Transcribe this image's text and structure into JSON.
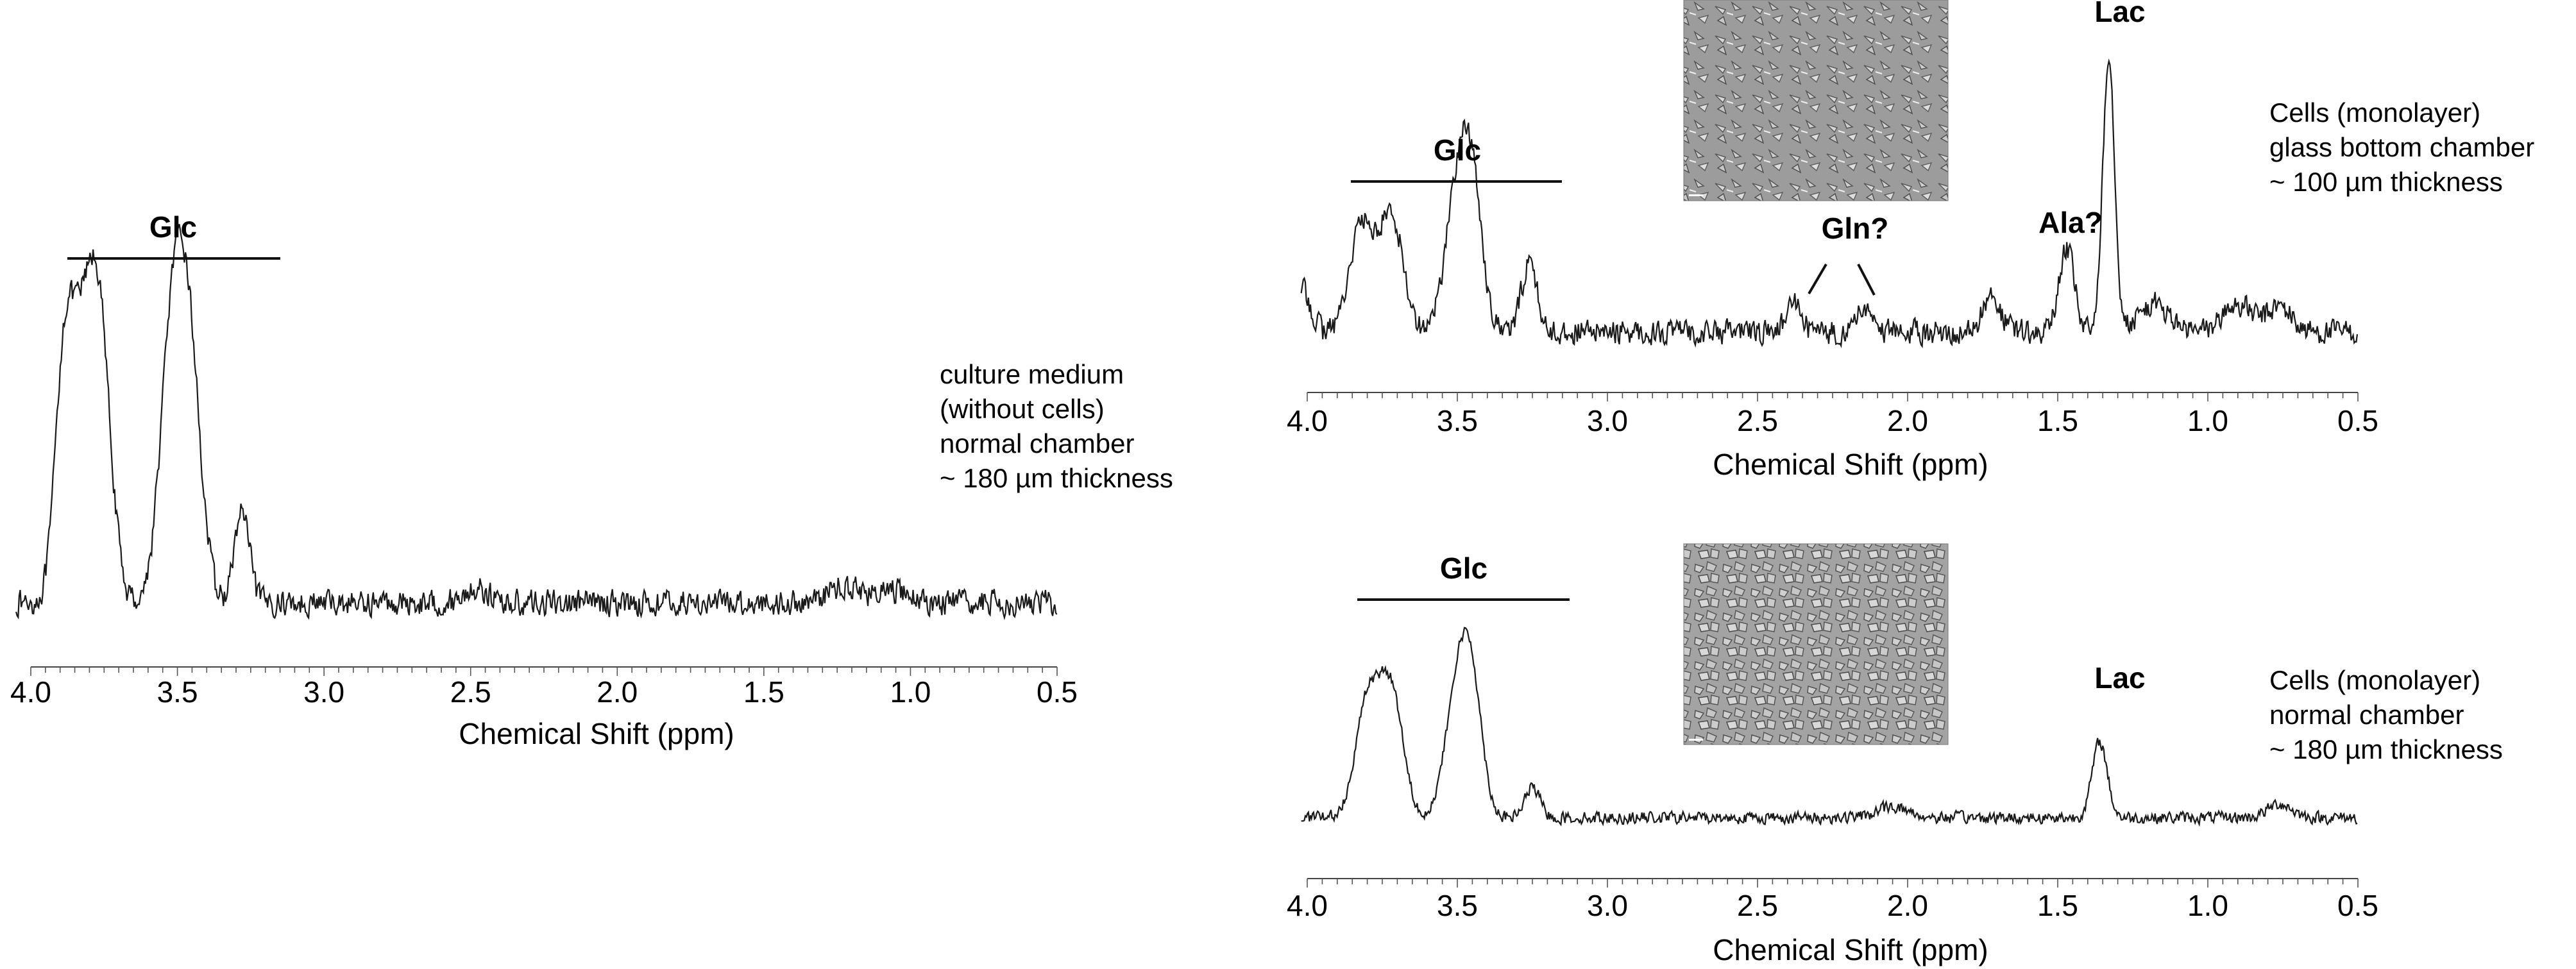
{
  "chart_data": [
    {
      "type": "line",
      "id": "panel-left",
      "xlabel": "Chemical Shift (ppm)",
      "xlim": [
        4.0,
        0.5
      ],
      "x_reversed": true,
      "tick_labels": [
        "4.0",
        "3.5",
        "3.0",
        "2.5",
        "2.0",
        "1.5",
        "1.0",
        "0.5"
      ],
      "peak_labels": [
        {
          "text": "Glc",
          "x_from": 3.88,
          "x_to": 3.18
        }
      ],
      "annotation": [
        "culture medium",
        "(without cells)",
        "normal chamber",
        "~ 180 µm thickness"
      ],
      "series": [
        {
          "peaks": [
            {
              "center": 3.89,
              "height": 0.62,
              "width": 0.03
            },
            {
              "center": 3.84,
              "height": 0.7,
              "width": 0.04
            },
            {
              "center": 3.77,
              "height": 1.0,
              "width": 0.04
            },
            {
              "center": 3.52,
              "height": 0.86,
              "width": 0.04
            },
            {
              "center": 3.46,
              "height": 0.82,
              "width": 0.04
            },
            {
              "center": 3.28,
              "height": 0.32,
              "width": 0.025
            },
            {
              "center": 2.48,
              "height": 0.05,
              "width": 0.04
            },
            {
              "center": 1.22,
              "height": 0.06,
              "width": 0.06
            },
            {
              "center": 1.05,
              "height": 0.04,
              "width": 0.05
            }
          ]
        }
      ]
    },
    {
      "type": "line",
      "id": "panel-top-right",
      "xlabel": "Chemical Shift (ppm)",
      "xlim": [
        4.0,
        0.5
      ],
      "x_reversed": true,
      "tick_labels": [
        "4.0",
        "3.5",
        "3.0",
        "2.5",
        "2.0",
        "1.5",
        "1.0",
        "0.5"
      ],
      "peak_labels": [
        {
          "text": "Glc",
          "x_from": 3.92,
          "x_to": 3.22
        },
        {
          "text": "Gln?",
          "x": 2.25
        },
        {
          "text": "Ala?",
          "x": 1.47
        },
        {
          "text": "Lac",
          "x": 1.33
        }
      ],
      "annotation": [
        "Cells (monolayer)",
        "glass bottom chamber",
        "~ 100 µm thickness"
      ],
      "series": [
        {
          "peaks": [
            {
              "center": 3.82,
              "height": 0.38,
              "width": 0.04
            },
            {
              "center": 3.72,
              "height": 0.42,
              "width": 0.04
            },
            {
              "center": 3.5,
              "height": 0.48,
              "width": 0.04
            },
            {
              "center": 3.45,
              "height": 0.44,
              "width": 0.035
            },
            {
              "center": 3.26,
              "height": 0.26,
              "width": 0.025
            },
            {
              "center": 2.38,
              "height": 0.1,
              "width": 0.025
            },
            {
              "center": 2.14,
              "height": 0.09,
              "width": 0.025
            },
            {
              "center": 1.72,
              "height": 0.12,
              "width": 0.03
            },
            {
              "center": 1.47,
              "height": 0.3,
              "width": 0.025
            },
            {
              "center": 1.33,
              "height": 1.0,
              "width": 0.02
            },
            {
              "center": 1.18,
              "height": 0.1,
              "width": 0.05
            },
            {
              "center": 0.9,
              "height": 0.1,
              "width": 0.05
            },
            {
              "center": 0.76,
              "height": 0.09,
              "width": 0.04
            }
          ]
        }
      ]
    },
    {
      "type": "line",
      "id": "panel-bottom-right",
      "xlabel": "Chemical Shift (ppm)",
      "xlim": [
        4.0,
        0.5
      ],
      "x_reversed": true,
      "tick_labels": [
        "4.0",
        "3.5",
        "3.0",
        "2.5",
        "2.0",
        "1.5",
        "1.0",
        "0.5"
      ],
      "peak_labels": [
        {
          "text": "Glc",
          "x_from": 3.9,
          "x_to": 3.2
        },
        {
          "text": "Lac",
          "x": 1.34
        }
      ],
      "annotation": [
        "Cells (monolayer)",
        "normal chamber",
        "~ 180 µm thickness"
      ],
      "series": [
        {
          "peaks": [
            {
              "center": 3.8,
              "height": 0.82,
              "width": 0.04
            },
            {
              "center": 3.72,
              "height": 0.9,
              "width": 0.04
            },
            {
              "center": 3.5,
              "height": 0.88,
              "width": 0.04
            },
            {
              "center": 3.45,
              "height": 0.8,
              "width": 0.035
            },
            {
              "center": 3.25,
              "height": 0.22,
              "width": 0.025
            },
            {
              "center": 2.05,
              "height": 0.08,
              "width": 0.05
            },
            {
              "center": 1.36,
              "height": 0.55,
              "width": 0.025
            },
            {
              "center": 0.76,
              "height": 0.1,
              "width": 0.04
            }
          ]
        }
      ]
    }
  ]
}
